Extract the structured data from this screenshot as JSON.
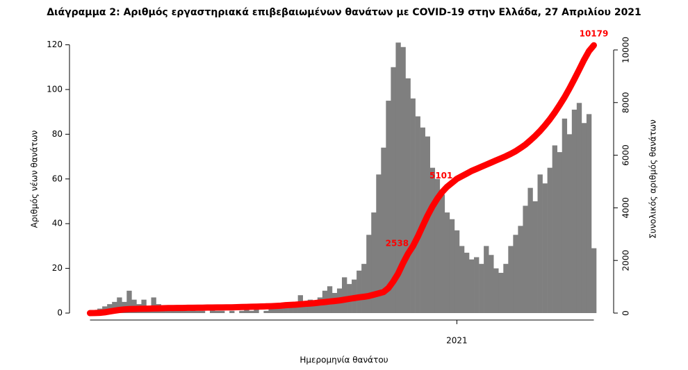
{
  "chart_data": {
    "type": "bar-line",
    "title": "Διάγραμμα 2: Αριθμός εργαστηριακά επιβεβαιωμένων θανάτων με COVID-19 στην Ελλάδα, 27 Απριλίου 2021",
    "x_label": "Ημερομηνία θανάτου",
    "y_label": "Αριθμός νέων θανάτων",
    "y2_label": "Συνολικός αριθμός θανάτων",
    "categories": [
      null,
      null,
      null,
      null,
      null,
      null,
      null,
      null,
      null,
      null,
      null,
      null,
      null,
      null,
      null,
      null,
      null,
      null,
      null,
      null,
      null,
      null,
      null,
      null,
      null,
      null,
      null,
      null,
      null,
      null,
      null,
      null,
      null,
      null,
      null,
      null,
      null,
      null,
      null,
      null,
      null,
      null,
      null,
      null,
      null,
      null,
      null,
      null,
      null,
      null,
      null,
      null,
      null,
      null,
      null,
      null,
      null,
      null,
      null,
      null,
      null,
      null,
      null,
      null,
      null,
      null,
      null,
      null,
      null,
      null,
      null,
      null,
      null,
      null,
      null,
      "2021",
      null,
      null,
      null,
      null,
      null,
      null,
      null,
      null,
      null,
      null,
      null,
      null,
      null,
      null,
      null,
      null,
      null,
      null,
      null,
      null,
      null,
      null,
      null,
      null,
      null,
      null,
      null,
      null
    ],
    "series": [
      {
        "type": "bar",
        "axis": "y",
        "color": "#7f7f7f",
        "values": [
          0,
          1,
          2,
          3,
          4,
          5,
          7,
          5,
          10,
          6,
          4,
          6,
          3,
          7,
          4,
          2,
          2,
          2,
          1,
          2,
          1,
          2,
          1,
          1,
          0,
          2,
          1,
          1,
          0,
          1,
          0,
          1,
          3,
          1,
          2,
          0,
          1,
          2,
          3,
          2,
          3,
          4,
          5,
          8,
          5,
          6,
          5,
          7,
          10,
          12,
          9,
          11,
          16,
          13,
          15,
          19,
          22,
          35,
          45,
          62,
          74,
          95,
          110,
          121,
          119,
          105,
          96,
          88,
          83,
          79,
          65,
          60,
          53,
          45,
          42,
          37,
          30,
          27,
          24,
          25,
          22,
          30,
          26,
          20,
          18,
          22,
          30,
          35,
          39,
          48,
          56,
          50,
          62,
          58,
          65,
          75,
          72,
          87,
          80,
          91,
          94,
          85,
          89,
          29
        ]
      },
      {
        "type": "line",
        "axis": "y2",
        "color": "#ff0000",
        "values": [
          0,
          2,
          10,
          30,
          60,
          90,
          120,
          140,
          150,
          155,
          160,
          165,
          170,
          175,
          180,
          185,
          190,
          190,
          195,
          195,
          200,
          200,
          205,
          205,
          210,
          210,
          215,
          215,
          220,
          220,
          225,
          230,
          235,
          240,
          245,
          250,
          255,
          260,
          270,
          280,
          300,
          310,
          320,
          335,
          350,
          365,
          380,
          400,
          420,
          440,
          460,
          480,
          510,
          540,
          570,
          600,
          620,
          650,
          700,
          750,
          800,
          950,
          1200,
          1500,
          1900,
          2250,
          2538,
          2900,
          3300,
          3700,
          4050,
          4350,
          4600,
          4800,
          4950,
          5101,
          5200,
          5300,
          5400,
          5480,
          5560,
          5640,
          5720,
          5800,
          5880,
          5960,
          6050,
          6150,
          6270,
          6400,
          6560,
          6730,
          6920,
          7130,
          7360,
          7620,
          7900,
          8200,
          8530,
          8880,
          9250,
          9620,
          9950,
          10179
        ]
      }
    ],
    "annotations": [
      {
        "index": 66,
        "text": "2538"
      },
      {
        "index": 75,
        "text": "5101"
      },
      {
        "index": 103,
        "text": "10179"
      }
    ],
    "ylim": [
      0,
      127
    ],
    "yticks": [
      0,
      20,
      40,
      60,
      80,
      100,
      120
    ],
    "y2lim": [
      0,
      10790
    ],
    "y2ticks": [
      0,
      2000,
      4000,
      6000,
      8000,
      10000
    ]
  }
}
